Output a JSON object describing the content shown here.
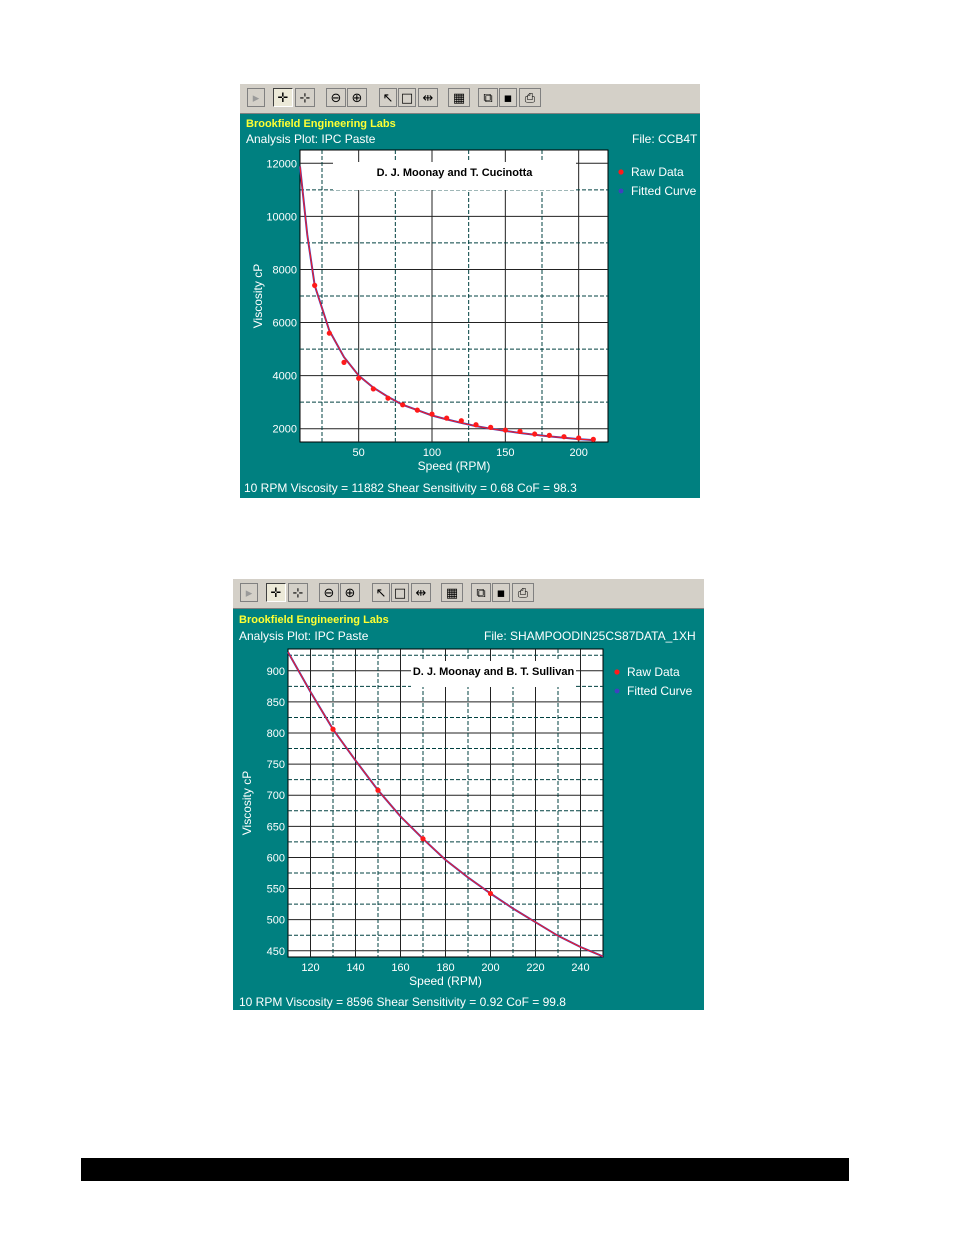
{
  "toolbar_icons": [
    "play-icon",
    "pan-icon",
    "zoom-box-icon",
    "zoom-out-icon",
    "zoom-in-icon",
    "pointer-icon",
    "select-box-icon",
    "split-icon",
    "properties-icon",
    "copy-icon",
    "save-icon",
    "print-icon"
  ],
  "colors": {
    "panel": "#008080",
    "raw": "#ff1a1a",
    "fit": "#4040c0",
    "grid": "#004040"
  },
  "chart_data": [
    {
      "type": "scatter",
      "header": "Brookfield Engineering Labs",
      "subtitle": "Analysis Plot: IPC Paste",
      "file": "File: CCB4T",
      "inset_title": "D. J. Moonay and T. Cucinotta",
      "xlabel": "Speed (RPM)",
      "ylabel": "Viscosity cP",
      "xlim": [
        10,
        220
      ],
      "ylim": [
        1500,
        12500
      ],
      "xticks": [
        50,
        100,
        150,
        200
      ],
      "yticks": [
        2000,
        4000,
        6000,
        8000,
        10000,
        12000
      ],
      "legend": [
        "Raw Data",
        "Fitted Curve"
      ],
      "footer": "10 RPM Viscosity = 11882    Shear Sensitivity = 0.68    CoF = 98.3",
      "series": [
        {
          "name": "Raw Data",
          "x": [
            20,
            30,
            40,
            50,
            60,
            70,
            80,
            90,
            100,
            110,
            120,
            130,
            140,
            150,
            160,
            170,
            180,
            190,
            200,
            210
          ],
          "y": [
            7400,
            5600,
            4500,
            3900,
            3500,
            3150,
            2900,
            2700,
            2550,
            2400,
            2300,
            2150,
            2050,
            1950,
            1900,
            1800,
            1750,
            1700,
            1650,
            1600
          ]
        },
        {
          "name": "Fitted Curve",
          "x": [
            10,
            15,
            20,
            30,
            40,
            50,
            60,
            70,
            80,
            90,
            100,
            110,
            120,
            130,
            140,
            150,
            160,
            170,
            180,
            190,
            200,
            210
          ],
          "y": [
            11882,
            9300,
            7400,
            5700,
            4700,
            4000,
            3550,
            3200,
            2900,
            2700,
            2500,
            2350,
            2220,
            2100,
            2000,
            1920,
            1840,
            1770,
            1710,
            1660,
            1610,
            1570
          ]
        }
      ]
    },
    {
      "type": "scatter",
      "header": "Brookfield Engineering Labs",
      "subtitle": "Analysis Plot: IPC Paste",
      "file": "File: SHAMPOODIN25CS87DATA_1XH",
      "inset_title": "D. J. Moonay and B. T. Sullivan",
      "xlabel": "Speed (RPM)",
      "ylabel": "Viscosity cP",
      "xlim": [
        110,
        250
      ],
      "ylim": [
        440,
        935
      ],
      "xticks": [
        120,
        140,
        160,
        180,
        200,
        220,
        240
      ],
      "yticks": [
        450,
        500,
        550,
        600,
        650,
        700,
        750,
        800,
        850,
        900
      ],
      "legend": [
        "Raw Data",
        "Fitted Curve"
      ],
      "footer": "10 RPM Viscosity = 8596    Shear Sensitivity = 0.92    CoF = 99.8",
      "series": [
        {
          "name": "Raw Data",
          "x": [
            130,
            150,
            170,
            200
          ],
          "y": [
            806,
            708,
            630,
            542
          ]
        },
        {
          "name": "Fitted Curve",
          "x": [
            110,
            120,
            130,
            140,
            150,
            160,
            170,
            180,
            190,
            200,
            210,
            220,
            230,
            240,
            250
          ],
          "y": [
            930,
            866,
            806,
            756,
            708,
            666,
            630,
            596,
            568,
            542,
            518,
            496,
            474,
            456,
            441
          ]
        }
      ]
    }
  ]
}
